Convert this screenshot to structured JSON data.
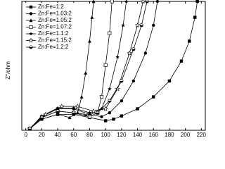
{
  "chart_data": {
    "type": "scatter",
    "y_label": "Z''/ohm",
    "xlim": [
      -5,
      225
    ],
    "xticks": [
      0,
      20,
      40,
      60,
      80,
      100,
      120,
      140,
      160,
      180,
      200,
      220
    ],
    "ylim": [
      -2,
      160
    ],
    "legend": "upper left",
    "series": [
      {
        "name": "Zn:Fe=1:2",
        "color": "#000000",
        "marker": "square",
        "x": [
          5,
          20,
          40,
          60,
          80,
          100,
          110,
          120,
          140,
          160,
          180,
          195,
          205,
          212,
          215
        ],
        "values": [
          0,
          12,
          18,
          18,
          14,
          10,
          12,
          16,
          25,
          40,
          60,
          85,
          110,
          140,
          160
        ]
      },
      {
        "name": "Zn:Fe=1.03:2",
        "color": "#000000",
        "marker": "circle",
        "x": [
          5,
          20,
          40,
          60,
          80,
          95,
          105,
          120,
          135,
          150,
          160,
          165
        ],
        "values": [
          0,
          15,
          25,
          25,
          18,
          15,
          20,
          35,
          60,
          95,
          130,
          160
        ]
      },
      {
        "name": "Zn:Fe=1.05:2",
        "color": "#000000",
        "marker": "triangle",
        "x": [
          5,
          20,
          40,
          55,
          65,
          70,
          75,
          80,
          83,
          85
        ],
        "values": [
          0,
          12,
          18,
          14,
          20,
          40,
          70,
          110,
          140,
          160
        ]
      },
      {
        "name": "Zn:Fe=1.07:2",
        "color": "#000000",
        "marker": "open-square",
        "x": [
          5,
          20,
          40,
          60,
          80,
          90,
          95,
          100,
          105,
          108
        ],
        "values": [
          0,
          14,
          22,
          20,
          15,
          20,
          40,
          80,
          120,
          160
        ]
      },
      {
        "name": "Zn:Fe=1.1:2",
        "color": "#000000",
        "marker": "star",
        "x": [
          5,
          20,
          40,
          60,
          80,
          95,
          105,
          115,
          122,
          126
        ],
        "values": [
          0,
          16,
          26,
          26,
          20,
          25,
          50,
          90,
          130,
          160
        ]
      },
      {
        "name": "Zn:Fe=1.15:2",
        "color": "#000000",
        "marker": "open-star",
        "x": [
          5,
          25,
          45,
          65,
          85,
          100,
          115,
          130,
          140,
          147
        ],
        "values": [
          0,
          18,
          28,
          28,
          22,
          25,
          50,
          95,
          130,
          160
        ]
      },
      {
        "name": "Zn:Fe=1.2:2",
        "color": "#000000",
        "marker": "half-circle",
        "x": [
          5,
          20,
          40,
          60,
          75,
          90,
          105,
          120,
          135,
          145,
          152
        ],
        "values": [
          0,
          14,
          22,
          20,
          18,
          20,
          35,
          60,
          100,
          130,
          160
        ]
      }
    ]
  }
}
